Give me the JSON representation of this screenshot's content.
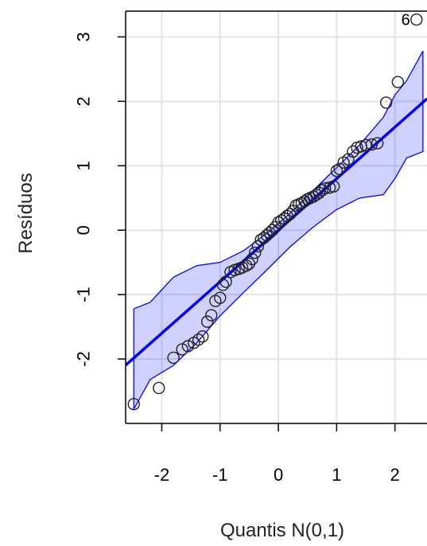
{
  "chart_data": {
    "type": "scatter",
    "xlabel": "Quantis N(0,1)",
    "ylabel": "Resíduos",
    "xlim": [
      -2.62,
      2.55
    ],
    "ylim": [
      -3.0,
      3.4
    ],
    "x_ticks": [
      "-2",
      "-1",
      "0",
      "1",
      "2"
    ],
    "y_ticks": [
      "-2",
      "-1",
      "0",
      "1",
      "2",
      "3"
    ],
    "grid": true,
    "annotation": {
      "label": "6",
      "x": 2.37,
      "y": 3.27
    },
    "reference_line": {
      "intercept": 0.0,
      "slope": 0.8
    },
    "envelope": {
      "x": [
        -2.48,
        -2.2,
        -1.8,
        -1.4,
        -1.0,
        -0.6,
        -0.2,
        0.2,
        0.6,
        1.0,
        1.4,
        1.8,
        2.0,
        2.2,
        2.48
      ],
      "upper": [
        -1.22,
        -1.12,
        -0.73,
        -0.55,
        -0.5,
        -0.32,
        -0.05,
        0.26,
        0.62,
        0.97,
        1.33,
        1.75,
        2.1,
        2.32,
        2.78
      ],
      "lower": [
        -2.78,
        -2.32,
        -2.1,
        -1.75,
        -1.33,
        -0.97,
        -0.62,
        -0.26,
        0.05,
        0.32,
        0.5,
        0.55,
        0.8,
        1.12,
        1.22
      ]
    },
    "points": {
      "x": [
        -2.48,
        -2.05,
        -1.8,
        -1.65,
        -1.55,
        -1.45,
        -1.37,
        -1.3,
        -1.22,
        -1.15,
        -1.08,
        -1.0,
        -0.95,
        -0.9,
        -0.82,
        -0.75,
        -0.68,
        -0.62,
        -0.55,
        -0.5,
        -0.45,
        -0.4,
        -0.35,
        -0.3,
        -0.25,
        -0.2,
        -0.15,
        -0.1,
        -0.05,
        0.0,
        0.05,
        0.1,
        0.15,
        0.2,
        0.25,
        0.3,
        0.35,
        0.4,
        0.45,
        0.5,
        0.55,
        0.6,
        0.65,
        0.7,
        0.75,
        0.8,
        0.88,
        0.95,
        1.0,
        1.05,
        1.12,
        1.2,
        1.28,
        1.35,
        1.42,
        1.5,
        1.6,
        1.7,
        1.85,
        2.05,
        2.37
      ],
      "y": [
        -2.7,
        -2.45,
        -1.98,
        -1.85,
        -1.8,
        -1.75,
        -1.7,
        -1.65,
        -1.42,
        -1.32,
        -1.1,
        -1.05,
        -0.85,
        -0.8,
        -0.65,
        -0.62,
        -0.6,
        -0.58,
        -0.55,
        -0.52,
        -0.45,
        -0.35,
        -0.25,
        -0.15,
        -0.12,
        -0.08,
        -0.04,
        0.0,
        0.05,
        0.12,
        0.15,
        0.18,
        0.22,
        0.25,
        0.3,
        0.38,
        0.4,
        0.42,
        0.45,
        0.48,
        0.5,
        0.52,
        0.55,
        0.58,
        0.62,
        0.65,
        0.66,
        0.68,
        0.92,
        0.95,
        1.05,
        1.1,
        1.22,
        1.28,
        1.3,
        1.32,
        1.33,
        1.35,
        1.98,
        2.3,
        3.27
      ]
    }
  }
}
